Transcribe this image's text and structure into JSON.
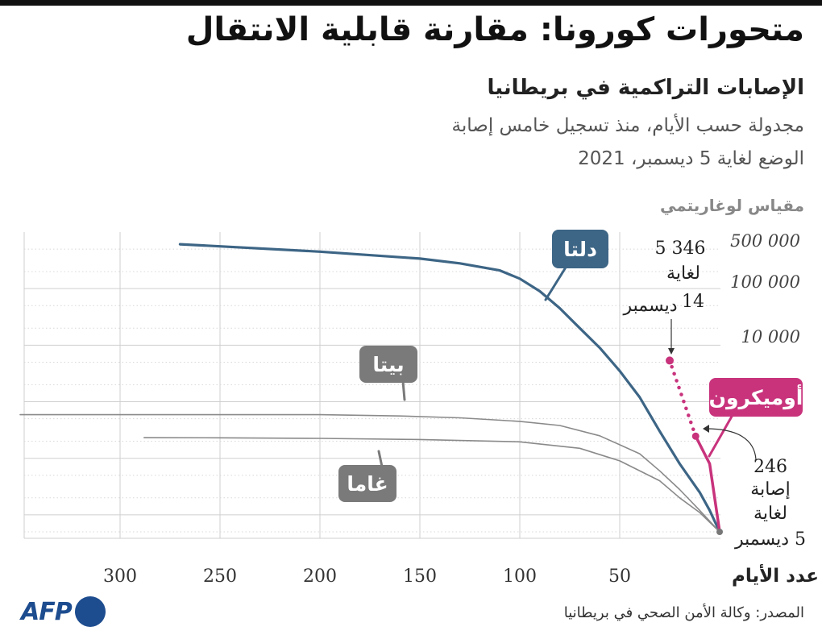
{
  "header": {
    "title": "متحورات كورونا: مقارنة قابلية الانتقال",
    "subtitle": "الإصابات التراكمية في بريطانيا",
    "description_line1": "مجدولة حسب الأيام، منذ تسجيل خامس إصابة",
    "description_line2": "الوضع لغاية 5 ديسمبر، 2021",
    "scale_note": "مقياس لوغاريتمي"
  },
  "footer": {
    "source": "المصدر: وكالة الأمن الصحي في بريطانيا",
    "logo_text": "AFP"
  },
  "colors": {
    "delta": "#3d6585",
    "beta": "#8a8a8a",
    "gamma": "#8a8a8a",
    "omicron": "#c8337c",
    "grid": "#cfcfcf"
  },
  "chart_data": {
    "type": "line",
    "x_axis_reversed": true,
    "xlabel": "عدد الأيام",
    "xlim": [
      0,
      350
    ],
    "x_ticks": [
      50,
      100,
      150,
      200,
      250,
      300
    ],
    "x_tick_labels": [
      "50",
      "100",
      "150",
      "200",
      "250",
      "300"
    ],
    "y_scale": "log",
    "ylim": [
      5,
      1000000
    ],
    "y_ticks": [
      10000,
      100000,
      500000
    ],
    "y_tick_labels": [
      "10 000",
      "100 000",
      "500 000"
    ],
    "grid": true,
    "series": [
      {
        "key": "delta",
        "name": "دلتا",
        "points": [
          [
            0,
            5
          ],
          [
            5,
            12
          ],
          [
            10,
            25
          ],
          [
            20,
            80
          ],
          [
            30,
            300
          ],
          [
            40,
            1200
          ],
          [
            50,
            3500
          ],
          [
            60,
            9000
          ],
          [
            70,
            20000
          ],
          [
            80,
            45000
          ],
          [
            90,
            90000
          ],
          [
            100,
            150000
          ],
          [
            110,
            210000
          ],
          [
            130,
            280000
          ],
          [
            150,
            340000
          ],
          [
            200,
            450000
          ],
          [
            250,
            560000
          ],
          [
            270,
            610000
          ]
        ]
      },
      {
        "key": "beta",
        "name": "بيتا",
        "points": [
          [
            0,
            5
          ],
          [
            10,
            12
          ],
          [
            20,
            28
          ],
          [
            30,
            60
          ],
          [
            40,
            120
          ],
          [
            60,
            250
          ],
          [
            80,
            380
          ],
          [
            100,
            450
          ],
          [
            130,
            520
          ],
          [
            160,
            560
          ],
          [
            200,
            590
          ],
          [
            300,
            590
          ],
          [
            350,
            590
          ]
        ]
      },
      {
        "key": "gamma",
        "name": "غاما",
        "points": [
          [
            0,
            5
          ],
          [
            10,
            11
          ],
          [
            20,
            20
          ],
          [
            30,
            40
          ],
          [
            50,
            90
          ],
          [
            70,
            150
          ],
          [
            100,
            195
          ],
          [
            150,
            215
          ],
          [
            200,
            225
          ],
          [
            250,
            230
          ],
          [
            288,
            232
          ]
        ]
      },
      {
        "key": "omicron",
        "name": "أوميكرون",
        "points": [
          [
            0,
            5
          ],
          [
            5,
            80
          ],
          [
            12,
            246
          ]
        ],
        "projection": [
          [
            12,
            246
          ],
          [
            25,
            5346
          ]
        ]
      }
    ],
    "annotations": {
      "omicron_current": [
        "246",
        "إصابة",
        "لغاية",
        "5 ديسمبر"
      ],
      "omicron_projection": [
        "5 346",
        "لغاية",
        "14",
        "ديسمبر"
      ]
    }
  }
}
